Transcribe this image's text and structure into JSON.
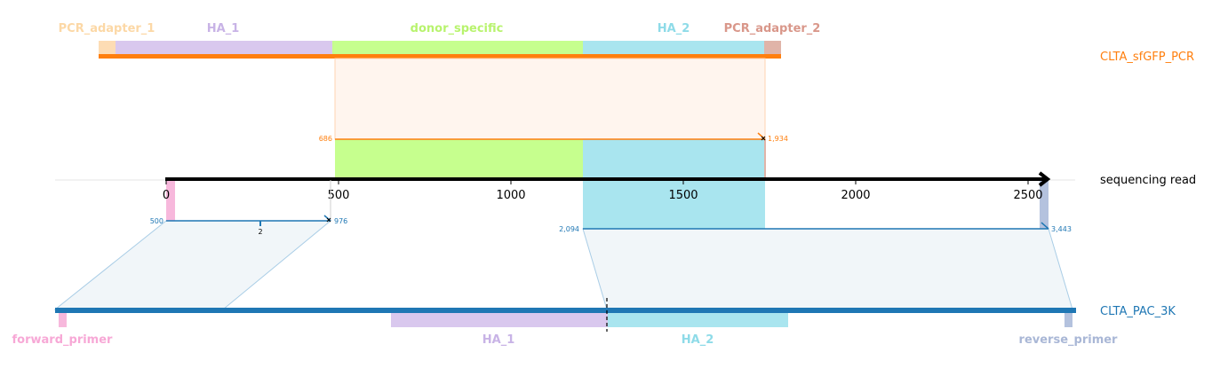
{
  "colors": {
    "pcr_track": "#ff7f0e",
    "ref_track": "#1f77b4",
    "read_track": "#000000",
    "pcr_adapter_1": "#fddcb4",
    "ha_1": "#d9c8ee",
    "donor_specific": "#c6ff8e",
    "ha_2": "#a9e5ef",
    "pcr_adapter_2": "#e0b4a8",
    "forward_primer": "#f7b8dc",
    "reverse_primer": "#b4c2de"
  },
  "top_features": [
    {
      "id": "pcr_adapter_1",
      "label": "PCR_adapter_1",
      "label_color": "#fcd8a6",
      "color": "#fddcb4"
    },
    {
      "id": "ha_1",
      "label": "HA_1",
      "label_color": "#c8b3e6",
      "color": "#d9c8ee"
    },
    {
      "id": "donor_specific",
      "label": "donor_specific",
      "label_color": "#b8f36e",
      "color": "#c6ff8e"
    },
    {
      "id": "ha_2",
      "label": "HA_2",
      "label_color": "#8edbe8",
      "color": "#a9e5ef"
    },
    {
      "id": "pcr_adapter_2",
      "label": "PCR_adapter_2",
      "label_color": "#d9978a",
      "color": "#e0b4a8"
    }
  ],
  "bottom_features": [
    {
      "id": "forward_primer",
      "label": "forward_primer",
      "label_color": "#f7a8d6",
      "color": "#f7b8dc"
    },
    {
      "id": "ha_1_ref",
      "label": "HA_1",
      "label_color": "#c8b3e6",
      "color": "#d9c8ee"
    },
    {
      "id": "ha_2_ref",
      "label": "HA_2",
      "label_color": "#8edbe8",
      "color": "#a9e5ef"
    },
    {
      "id": "reverse_primer",
      "label": "reverse_primer",
      "label_color": "#a9b7d6",
      "color": "#b4c2de"
    }
  ],
  "tracks": {
    "pcr": {
      "label": "CLTA_sfGFP_PCR"
    },
    "read": {
      "label": "sequencing read"
    },
    "ref": {
      "label": "CLTA_PAC_3K"
    }
  },
  "axis": {
    "ticks": [
      0,
      500,
      1000,
      1500,
      2000,
      2500
    ],
    "tick_labels": [
      "0",
      "500",
      "1000",
      "1500",
      "2000",
      "2500"
    ]
  },
  "alignments": {
    "pcr": {
      "start_label": "686",
      "end_label": "1,934"
    },
    "ref_left": {
      "start_label": "500",
      "end_label": "976",
      "marker_label": "2"
    },
    "ref_right": {
      "start_label": "2,094",
      "end_label": "3,443"
    }
  }
}
